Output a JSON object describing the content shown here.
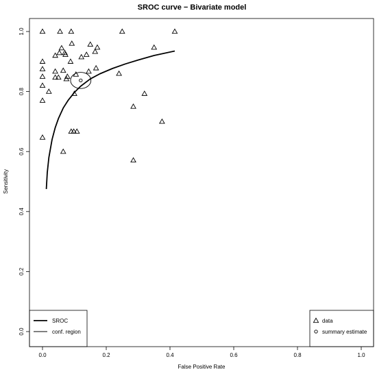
{
  "chart_data": {
    "type": "scatter",
    "title": "SROC curve − Bivariate model",
    "xlabel": "False Positive Rate",
    "ylabel": "Sensitivity",
    "xlim": [
      0,
      1
    ],
    "ylim": [
      0,
      1
    ],
    "x_ticks": [
      "0.0",
      "0.2",
      "0.4",
      "0.6",
      "0.8",
      "1.0"
    ],
    "y_ticks": [
      "0.0",
      "0.2",
      "0.4",
      "0.6",
      "0.8",
      "1.0"
    ],
    "grid": false,
    "series": [
      {
        "name": "data",
        "marker": "triangle",
        "points": [
          [
            0.0,
            1.0
          ],
          [
            0.055,
            1.0
          ],
          [
            0.09,
            1.0
          ],
          [
            0.25,
            1.0
          ],
          [
            0.415,
            1.0
          ],
          [
            0.06,
            0.945
          ],
          [
            0.15,
            0.957
          ],
          [
            0.172,
            0.947
          ],
          [
            0.35,
            0.947
          ],
          [
            0.092,
            0.96
          ],
          [
            0.053,
            0.929
          ],
          [
            0.07,
            0.929
          ],
          [
            0.072,
            0.923
          ],
          [
            0.04,
            0.92
          ],
          [
            0.122,
            0.915
          ],
          [
            0.138,
            0.923
          ],
          [
            0.165,
            0.933
          ],
          [
            0.0,
            0.9
          ],
          [
            0.088,
            0.9
          ],
          [
            0.0,
            0.875
          ],
          [
            0.04,
            0.867
          ],
          [
            0.065,
            0.87
          ],
          [
            0.168,
            0.878
          ],
          [
            0.145,
            0.867
          ],
          [
            0.24,
            0.86
          ],
          [
            0.0,
            0.85
          ],
          [
            0.04,
            0.847
          ],
          [
            0.05,
            0.847
          ],
          [
            0.075,
            0.842
          ],
          [
            0.078,
            0.85
          ],
          [
            0.105,
            0.857
          ],
          [
            0.0,
            0.82
          ],
          [
            0.02,
            0.8
          ],
          [
            0.1,
            0.793
          ],
          [
            0.32,
            0.793
          ],
          [
            0.0,
            0.77
          ],
          [
            0.285,
            0.75
          ],
          [
            0.375,
            0.7
          ],
          [
            0.09,
            0.667
          ],
          [
            0.098,
            0.667
          ],
          [
            0.108,
            0.667
          ],
          [
            0.0,
            0.647
          ],
          [
            0.065,
            0.6
          ],
          [
            0.285,
            0.571
          ]
        ]
      },
      {
        "name": "summary estimate",
        "marker": "circle",
        "points": [
          [
            0.12,
            0.837
          ]
        ]
      }
    ],
    "lines": [
      {
        "name": "SROC",
        "style": "thick",
        "points": [
          [
            0.012,
            0.475
          ],
          [
            0.015,
            0.53
          ],
          [
            0.02,
            0.58
          ],
          [
            0.03,
            0.64
          ],
          [
            0.04,
            0.68
          ],
          [
            0.05,
            0.71
          ],
          [
            0.065,
            0.745
          ],
          [
            0.08,
            0.77
          ],
          [
            0.1,
            0.797
          ],
          [
            0.12,
            0.818
          ],
          [
            0.15,
            0.842
          ],
          [
            0.18,
            0.859
          ],
          [
            0.22,
            0.877
          ],
          [
            0.26,
            0.892
          ],
          [
            0.3,
            0.905
          ],
          [
            0.35,
            0.92
          ],
          [
            0.415,
            0.935
          ]
        ]
      },
      {
        "name": "conf. region",
        "style": "thin",
        "shape": "ellipse",
        "center": [
          0.12,
          0.837
        ],
        "radius_x": 0.032,
        "radius_y": 0.027
      }
    ],
    "legends": [
      {
        "placement": "bottom-left",
        "entries": [
          "SROC",
          "conf. region"
        ]
      },
      {
        "placement": "bottom-right",
        "entries": [
          "data",
          "summary estimate"
        ]
      }
    ]
  }
}
